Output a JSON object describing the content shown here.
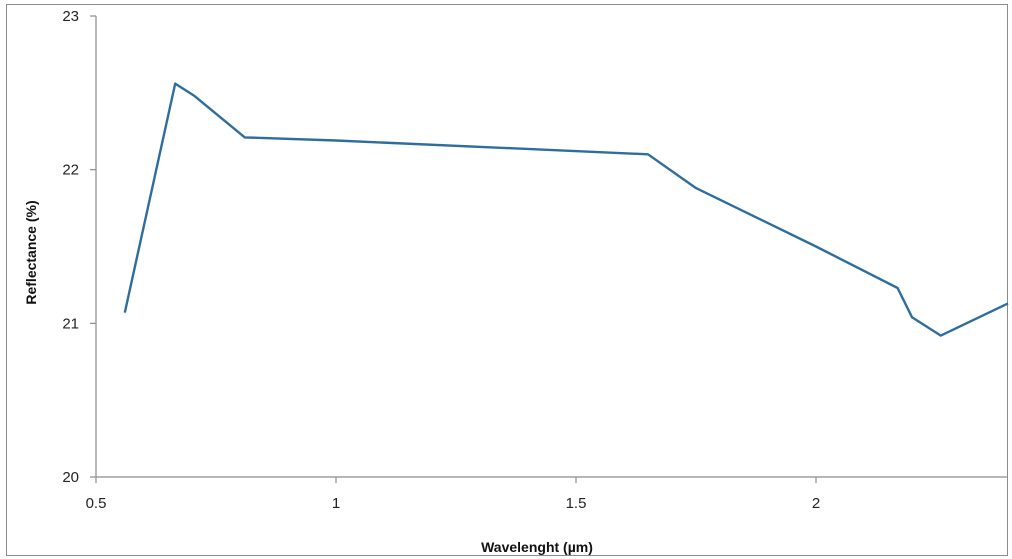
{
  "chart_data": {
    "type": "line",
    "title": "",
    "xlabel": "Wavelenght (µm)",
    "ylabel": "Reflectance (%)",
    "xlim": [
      0.5,
      2.4
    ],
    "ylim": [
      20,
      23
    ],
    "x_ticks": [
      0.5,
      1,
      1.5,
      2
    ],
    "x_tick_labels": [
      "0.5",
      "1",
      "1.5",
      "2"
    ],
    "y_ticks": [
      20,
      21,
      22,
      23
    ],
    "y_tick_labels": [
      "20",
      "21",
      "22",
      "23"
    ],
    "grid": false,
    "legend": "none",
    "series": [
      {
        "color": "#2e6e9e",
        "x": [
          0.56,
          0.665,
          0.705,
          0.81,
          1.0,
          1.65,
          1.75,
          2.0,
          2.17,
          2.2,
          2.26,
          2.4
        ],
        "y": [
          21.07,
          22.56,
          22.48,
          22.21,
          22.19,
          22.1,
          21.88,
          21.5,
          21.23,
          21.04,
          20.92,
          21.13
        ]
      }
    ]
  }
}
